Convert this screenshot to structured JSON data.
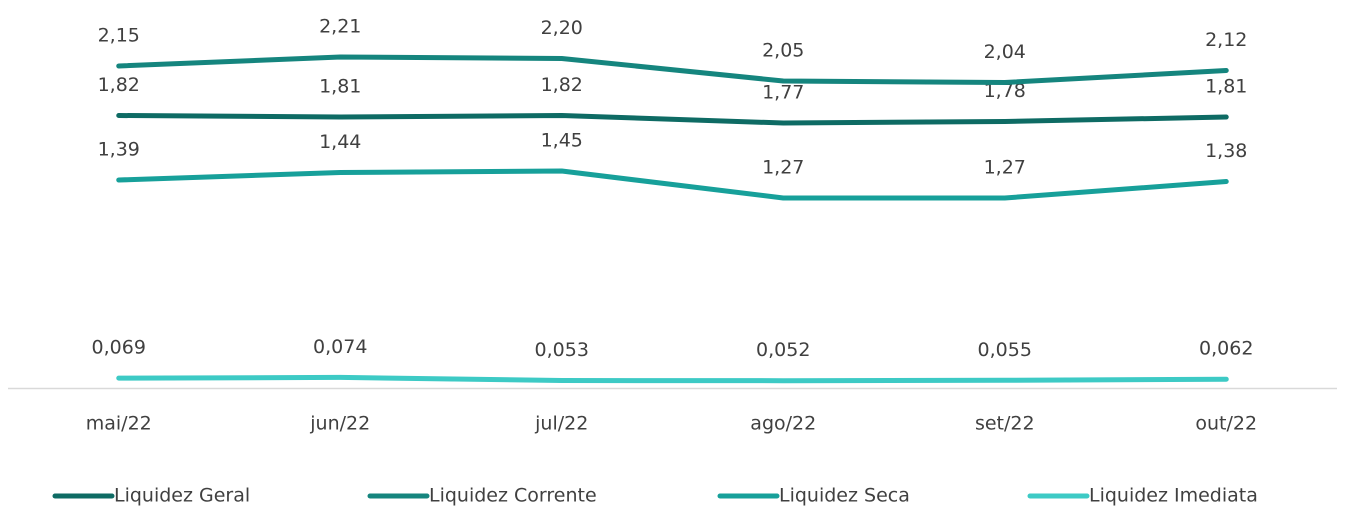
{
  "chart_data": {
    "type": "line",
    "categories": [
      "mai/22",
      "jun/22",
      "jul/22",
      "ago/22",
      "set/22",
      "out/22"
    ],
    "ylim": [
      0,
      2.5
    ],
    "legend": "bottom",
    "series": [
      {
        "name": "Liquidez Geral",
        "color": "#0e6b64",
        "values": [
          1.82,
          1.81,
          1.82,
          1.77,
          1.78,
          1.81
        ],
        "value_labels": [
          "1,82",
          "1,81",
          "1,82",
          "1,77",
          "1,78",
          "1,81"
        ]
      },
      {
        "name": "Liquidez Corrente",
        "color": "#15857e",
        "values": [
          2.15,
          2.21,
          2.2,
          2.05,
          2.04,
          2.12
        ],
        "value_labels": [
          "2,15",
          "2,21",
          "2,20",
          "2,05",
          "2,04",
          "2,12"
        ]
      },
      {
        "name": "Liquidez Seca",
        "color": "#17a09a",
        "values": [
          1.39,
          1.44,
          1.45,
          1.27,
          1.27,
          1.38
        ],
        "value_labels": [
          "1,39",
          "1,44",
          "1,45",
          "1,27",
          "1,27",
          "1,38"
        ]
      },
      {
        "name": "Liquidez Imediata",
        "color": "#3dcac5",
        "values": [
          0.069,
          0.074,
          0.053,
          0.052,
          0.055,
          0.062
        ],
        "value_labels": [
          "0,069",
          "0,074",
          "0,053",
          "0,052",
          "0,055",
          "0,062"
        ]
      }
    ]
  }
}
